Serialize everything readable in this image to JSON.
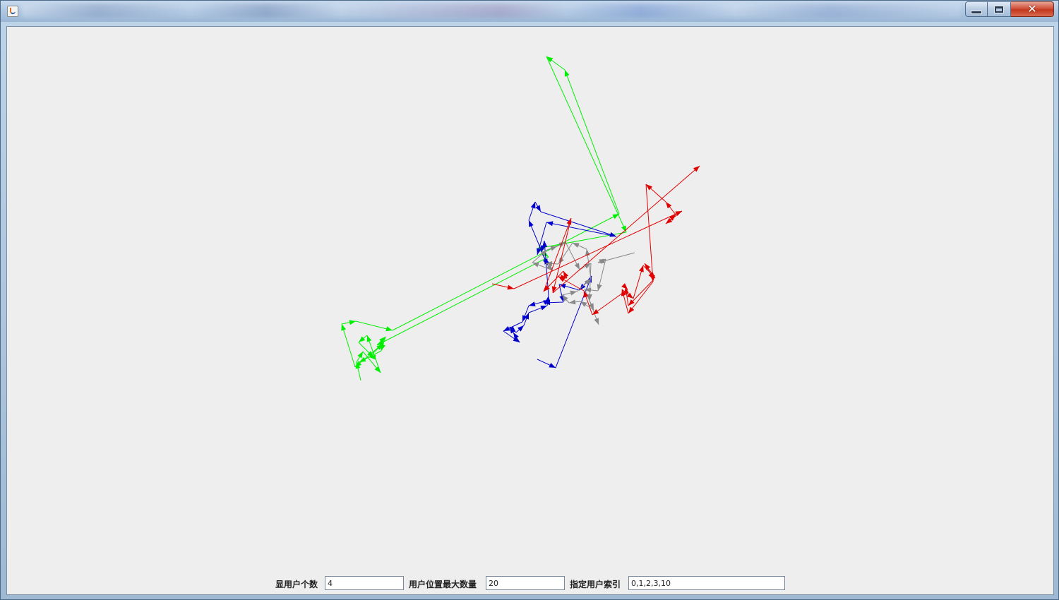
{
  "window": {
    "title": "",
    "colors": {
      "titlebar": "#adc6e1",
      "close": "#c2381f",
      "background": "#eeeeee"
    },
    "buttons": {
      "minimize_icon": "minimize-icon",
      "maximize_icon": "maximize-icon",
      "close_icon": "close-icon",
      "close_glyph": "✕"
    }
  },
  "controls": {
    "user_count_label": "显用户个数",
    "user_count_value": "4",
    "max_positions_label": "用户位置最大数量",
    "max_positions_value": "20",
    "user_index_label": "指定用户索引",
    "user_index_value": "0,1,2,3,10"
  },
  "chart_data": {
    "type": "line",
    "title": "",
    "xlabel": "",
    "ylabel": "",
    "grid": false,
    "legend": "none",
    "arrows": true,
    "series": [
      {
        "color": "#00ee00",
        "x": [
          510,
          504,
          513,
          538,
          519,
          507,
          528,
          522,
          541,
          502,
          483,
          503,
          555,
          876,
          799,
          773,
          886,
          760,
          776,
          533,
          545,
          539,
          508
        ],
        "y": [
          538,
          512,
          497,
          527,
          474,
          484,
          505,
          505,
          486,
          519,
          458,
          454,
          467,
          302,
          98,
          79,
          328,
          351,
          363,
          488,
          476,
          496,
          512
        ]
      },
      {
        "color": "#0000cc",
        "x": [
          760,
          786,
          837,
          820,
          791,
          797,
          769,
          778,
          748,
          739,
          712,
          735,
          726,
          721,
          730,
          741,
          748,
          774,
          776,
          770,
          766,
          775,
          770,
          748,
          757,
          765,
          872,
          773,
          760
        ],
        "y": [
          508,
          520,
          390,
          410,
          402,
          427,
          428,
          424,
          432,
          455,
          468,
          484,
          470,
          462,
          470,
          460,
          442,
          432,
          418,
          340,
          356,
          375,
          364,
          311,
          285,
          299,
          334,
          314,
          360
        ]
      },
      {
        "color": "#888888",
        "x": [
          898,
          846,
          857,
          846,
          827,
          840,
          821,
          805,
          795,
          816,
          836,
          830,
          810,
          790,
          772,
          782,
          753,
          774,
          788,
          800,
          820,
          836,
          834,
          847
        ],
        "y": [
          357,
          371,
          366,
          411,
          409,
          438,
          426,
          428,
          417,
          412,
          394,
          352,
          343,
          373,
          372,
          382,
          371,
          353,
          348,
          342,
          381,
          372,
          425,
          459
        ]
      },
      {
        "color": "#e00000",
        "x": [
          696,
          727,
          965,
          942,
          956,
          942,
          914,
          924,
          889,
          880,
          896,
          910,
          927,
          912,
          925,
          889,
          885,
          888,
          838,
          826,
          790,
          802,
          797,
          769,
          808,
          808,
          782,
          990
        ],
        "y": [
          401,
          408,
          298,
          316,
          303,
          285,
          260,
          398,
          443,
          409,
          422,
          375,
          393,
          372,
          395,
          432,
          406,
          409,
          445,
          411,
          391,
          393,
          383,
          412,
          308,
          308,
          414,
          234
        ]
      }
    ]
  }
}
